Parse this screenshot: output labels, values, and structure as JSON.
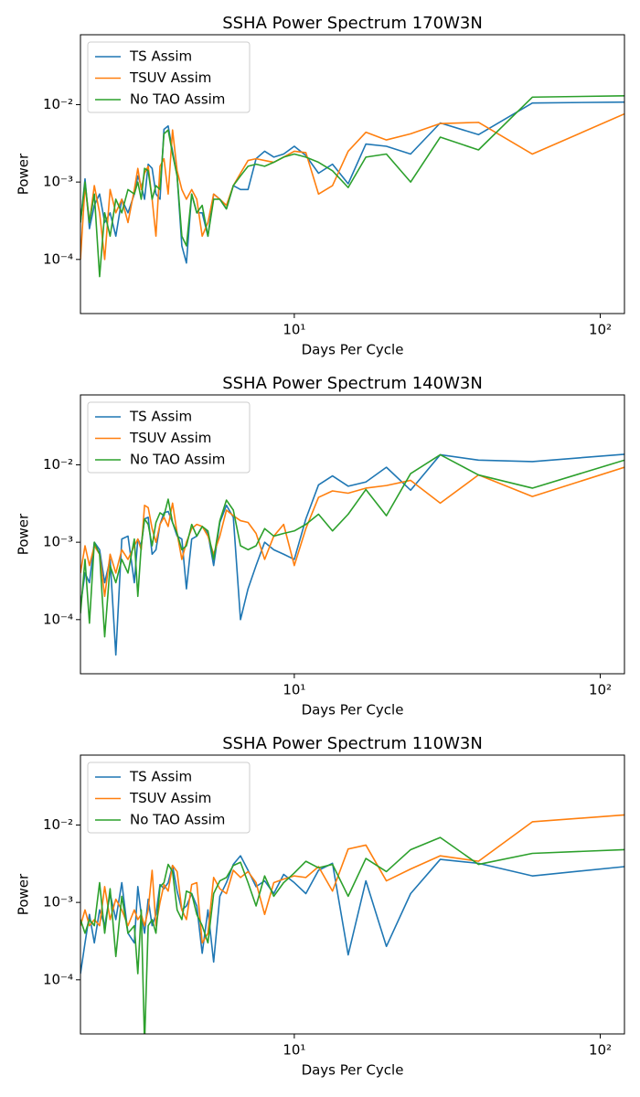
{
  "chart_data": [
    {
      "type": "line",
      "title": "SSHA Power Spectrum 170W3N",
      "xlabel": "Days Per Cycle",
      "ylabel": "Power",
      "xscale": "log",
      "yscale": "log",
      "legend": "upper left",
      "xlim": [
        2,
        120
      ],
      "ylim": [
        2e-05,
        0.08
      ],
      "xticks": [
        {
          "value": 10,
          "label": "10¹"
        },
        {
          "value": 100,
          "label": "10²"
        }
      ],
      "yticks": [
        {
          "value": 0.0001,
          "label": "10⁻⁴"
        },
        {
          "value": 0.001,
          "label": "10⁻³"
        },
        {
          "value": 0.01,
          "label": "10⁻²"
        }
      ],
      "x": [
        2.0,
        2.07,
        2.14,
        2.22,
        2.31,
        2.4,
        2.5,
        2.61,
        2.73,
        2.86,
        3.0,
        3.08,
        3.16,
        3.24,
        3.33,
        3.43,
        3.53,
        3.64,
        3.75,
        3.87,
        4.0,
        4.14,
        4.29,
        4.44,
        4.62,
        4.8,
        5.0,
        5.22,
        5.45,
        5.71,
        6.0,
        6.32,
        6.67,
        7.06,
        7.5,
        8.0,
        8.57,
        9.23,
        10.0,
        10.91,
        12.0,
        13.33,
        15.0,
        17.14,
        20.0,
        24.0,
        30.0,
        40.0,
        60.0,
        120.0
      ],
      "series": [
        {
          "name": "TS Assim",
          "color": "#1f77b4",
          "values": [
            0.0003,
            0.0011,
            0.00025,
            0.0005,
            0.0007,
            0.0003,
            0.0004,
            0.0002,
            0.0006,
            0.0004,
            0.0007,
            0.0012,
            0.0009,
            0.0006,
            0.0017,
            0.0015,
            0.0007,
            0.0006,
            0.0048,
            0.0053,
            0.0025,
            0.0012,
            0.00015,
            9e-05,
            0.0007,
            0.0004,
            0.0004,
            0.0002,
            0.0007,
            0.0006,
            0.00045,
            0.0009,
            0.0008,
            0.0008,
            0.002,
            0.0025,
            0.0021,
            0.0023,
            0.0029,
            0.0022,
            0.0013,
            0.0017,
            0.00095,
            0.0031,
            0.0029,
            0.0023,
            0.0058,
            0.0041,
            0.0105,
            0.0108
          ]
        },
        {
          "name": "TSUV Assim",
          "color": "#ff7f0e",
          "values": [
            0.0001,
            0.0009,
            0.0003,
            0.0009,
            0.0004,
            0.0001,
            0.0008,
            0.0004,
            0.0006,
            0.0003,
            0.0008,
            0.0015,
            0.0008,
            0.0013,
            0.0016,
            0.0006,
            0.0002,
            0.0016,
            0.002,
            0.0007,
            0.0047,
            0.0014,
            0.0008,
            0.0006,
            0.0008,
            0.0006,
            0.0002,
            0.0003,
            0.0007,
            0.0006,
            0.0005,
            0.0009,
            0.0013,
            0.0019,
            0.002,
            0.0019,
            0.0018,
            0.0021,
            0.0025,
            0.0024,
            0.0007,
            0.0009,
            0.0025,
            0.0044,
            0.0035,
            0.0042,
            0.0057,
            0.0059,
            0.0023,
            0.0076
          ]
        },
        {
          "name": "No TAO Assim",
          "color": "#2ca02c",
          "values": [
            0.0003,
            0.001,
            0.0003,
            0.0007,
            6e-05,
            0.0004,
            0.0002,
            0.0006,
            0.0004,
            0.0008,
            0.0007,
            0.001,
            0.0006,
            0.0015,
            0.0014,
            0.0006,
            0.0009,
            0.0008,
            0.0042,
            0.0047,
            0.0023,
            0.0012,
            0.0002,
            0.00015,
            0.0007,
            0.0004,
            0.0005,
            0.0002,
            0.0006,
            0.0006,
            0.00045,
            0.0009,
            0.0012,
            0.0016,
            0.0017,
            0.0016,
            0.0018,
            0.0021,
            0.0023,
            0.0021,
            0.0018,
            0.0014,
            0.00085,
            0.0021,
            0.0023,
            0.001,
            0.0038,
            0.0026,
            0.0125,
            0.013
          ]
        }
      ]
    },
    {
      "type": "line",
      "title": "SSHA Power Spectrum 140W3N",
      "xlabel": "Days Per Cycle",
      "ylabel": "Power",
      "xscale": "log",
      "yscale": "log",
      "legend": "upper left",
      "xlim": [
        2,
        120
      ],
      "ylim": [
        2e-05,
        0.08
      ],
      "xticks": [
        {
          "value": 10,
          "label": "10¹"
        },
        {
          "value": 100,
          "label": "10²"
        }
      ],
      "yticks": [
        {
          "value": 0.0001,
          "label": "10⁻⁴"
        },
        {
          "value": 0.001,
          "label": "10⁻³"
        },
        {
          "value": 0.01,
          "label": "10⁻²"
        }
      ],
      "x": [
        2.0,
        2.07,
        2.14,
        2.22,
        2.31,
        2.4,
        2.5,
        2.61,
        2.73,
        2.86,
        3.0,
        3.08,
        3.16,
        3.24,
        3.33,
        3.43,
        3.53,
        3.64,
        3.75,
        3.87,
        4.0,
        4.14,
        4.29,
        4.44,
        4.62,
        4.8,
        5.0,
        5.22,
        5.45,
        5.71,
        6.0,
        6.32,
        6.67,
        7.06,
        7.5,
        8.0,
        8.57,
        9.23,
        10.0,
        10.91,
        12.0,
        13.33,
        15.0,
        17.14,
        20.0,
        24.0,
        30.0,
        40.0,
        60.0,
        120.0
      ],
      "series": [
        {
          "name": "TS Assim",
          "color": "#1f77b4",
          "values": [
            0.00015,
            0.0004,
            0.0003,
            0.001,
            0.0008,
            0.0003,
            0.0006,
            3.5e-05,
            0.0011,
            0.0012,
            0.0003,
            0.0011,
            0.0009,
            0.002,
            0.0021,
            0.0007,
            0.0008,
            0.0017,
            0.0024,
            0.0025,
            0.0018,
            0.0012,
            0.0011,
            0.00025,
            0.0011,
            0.0012,
            0.0016,
            0.0013,
            0.0005,
            0.0018,
            0.003,
            0.0021,
            0.0001,
            0.00025,
            0.0005,
            0.001,
            0.0008,
            0.0007,
            0.0006,
            0.002,
            0.0055,
            0.0072,
            0.0053,
            0.006,
            0.0093,
            0.0047,
            0.0135,
            0.0115,
            0.011,
            0.0137
          ]
        },
        {
          "name": "TSUV Assim",
          "color": "#ff7f0e",
          "values": [
            0.0004,
            0.0009,
            0.0005,
            0.0009,
            0.0007,
            0.0002,
            0.0007,
            0.0004,
            0.0008,
            0.0006,
            0.0009,
            0.0011,
            0.0008,
            0.003,
            0.0028,
            0.0015,
            0.001,
            0.0017,
            0.0021,
            0.0016,
            0.0032,
            0.0013,
            0.0006,
            0.001,
            0.0015,
            0.0017,
            0.0016,
            0.0012,
            0.0007,
            0.0012,
            0.0026,
            0.0022,
            0.0019,
            0.0018,
            0.0013,
            0.0006,
            0.0012,
            0.0017,
            0.0005,
            0.0015,
            0.0038,
            0.0046,
            0.0043,
            0.005,
            0.0054,
            0.0063,
            0.0032,
            0.0074,
            0.0039,
            0.0093
          ]
        },
        {
          "name": "No TAO Assim",
          "color": "#2ca02c",
          "values": [
            0.00012,
            0.0006,
            9e-05,
            0.001,
            0.0007,
            6e-05,
            0.0005,
            0.0003,
            0.0006,
            0.0004,
            0.0011,
            0.0002,
            0.0009,
            0.002,
            0.0017,
            0.0009,
            0.0018,
            0.0024,
            0.0022,
            0.0036,
            0.0018,
            0.0013,
            0.0008,
            0.0009,
            0.0017,
            0.0012,
            0.0016,
            0.0014,
            0.0006,
            0.0019,
            0.0035,
            0.0026,
            0.0009,
            0.0008,
            0.0009,
            0.0015,
            0.0012,
            0.0013,
            0.0014,
            0.0017,
            0.0023,
            0.0014,
            0.0023,
            0.0048,
            0.0022,
            0.0077,
            0.0135,
            0.0074,
            0.005,
            0.0115
          ]
        }
      ]
    },
    {
      "type": "line",
      "title": "SSHA Power Spectrum 110W3N",
      "xlabel": "Days Per Cycle",
      "ylabel": "Power",
      "xscale": "log",
      "yscale": "log",
      "legend": "upper left",
      "xlim": [
        2,
        120
      ],
      "ylim": [
        2e-05,
        0.08
      ],
      "xticks": [
        {
          "value": 10,
          "label": "10¹"
        },
        {
          "value": 100,
          "label": "10²"
        }
      ],
      "yticks": [
        {
          "value": 0.0001,
          "label": "10⁻⁴"
        },
        {
          "value": 0.001,
          "label": "10⁻³"
        },
        {
          "value": 0.01,
          "label": "10⁻²"
        }
      ],
      "x": [
        2.0,
        2.07,
        2.14,
        2.22,
        2.31,
        2.4,
        2.5,
        2.61,
        2.73,
        2.86,
        3.0,
        3.08,
        3.16,
        3.24,
        3.33,
        3.43,
        3.53,
        3.64,
        3.75,
        3.87,
        4.0,
        4.14,
        4.29,
        4.44,
        4.62,
        4.8,
        5.0,
        5.22,
        5.45,
        5.71,
        6.0,
        6.32,
        6.67,
        7.06,
        7.5,
        8.0,
        8.57,
        9.23,
        10.0,
        10.91,
        12.0,
        13.33,
        15.0,
        17.14,
        20.0,
        24.0,
        30.0,
        40.0,
        60.0,
        120.0
      ],
      "series": [
        {
          "name": "TS Assim",
          "color": "#1f77b4",
          "values": [
            0.00012,
            0.0003,
            0.0007,
            0.0003,
            0.0008,
            0.0005,
            0.0013,
            0.0006,
            0.0018,
            0.0004,
            0.0003,
            0.0016,
            0.0007,
            0.0004,
            0.0011,
            0.0005,
            0.0007,
            0.0017,
            0.0015,
            0.0018,
            0.003,
            0.0014,
            0.0008,
            0.0009,
            0.0013,
            0.0009,
            0.00022,
            0.0008,
            0.00017,
            0.0012,
            0.0018,
            0.0031,
            0.004,
            0.0026,
            0.0016,
            0.0019,
            0.0013,
            0.0023,
            0.0018,
            0.0013,
            0.0026,
            0.0032,
            0.00021,
            0.0019,
            0.00027,
            0.0013,
            0.0036,
            0.0032,
            0.0022,
            0.0029
          ]
        },
        {
          "name": "TSUV Assim",
          "color": "#ff7f0e",
          "values": [
            0.0005,
            0.0008,
            0.0005,
            0.0006,
            0.0005,
            0.0016,
            0.0006,
            0.0011,
            0.0008,
            0.0005,
            0.0008,
            0.0006,
            0.0007,
            0.0005,
            0.0008,
            0.0026,
            0.0005,
            0.001,
            0.0017,
            0.0014,
            0.003,
            0.0025,
            0.0008,
            0.0006,
            0.0017,
            0.0018,
            0.0003,
            0.0004,
            0.0021,
            0.0015,
            0.0013,
            0.0026,
            0.0021,
            0.0025,
            0.0018,
            0.0007,
            0.0018,
            0.002,
            0.0022,
            0.0021,
            0.0029,
            0.0014,
            0.0049,
            0.0055,
            0.0019,
            0.0027,
            0.004,
            0.0034,
            0.011,
            0.0135
          ]
        },
        {
          "name": "No TAO Assim",
          "color": "#2ca02c",
          "values": [
            0.0006,
            0.0004,
            0.0006,
            0.0005,
            0.0018,
            0.0004,
            0.0015,
            0.0002,
            0.0012,
            0.0004,
            0.0005,
            0.00012,
            0.0008,
            1.5e-05,
            0.0005,
            0.0006,
            0.0004,
            0.0016,
            0.0018,
            0.0031,
            0.0025,
            0.0008,
            0.0006,
            0.0014,
            0.0013,
            0.0007,
            0.0005,
            0.0003,
            0.0013,
            0.0019,
            0.0021,
            0.003,
            0.0033,
            0.0018,
            0.0009,
            0.0022,
            0.0012,
            0.0018,
            0.0024,
            0.0034,
            0.0028,
            0.0031,
            0.0012,
            0.0037,
            0.0025,
            0.0048,
            0.0069,
            0.0031,
            0.0043,
            0.0048
          ]
        }
      ]
    }
  ]
}
